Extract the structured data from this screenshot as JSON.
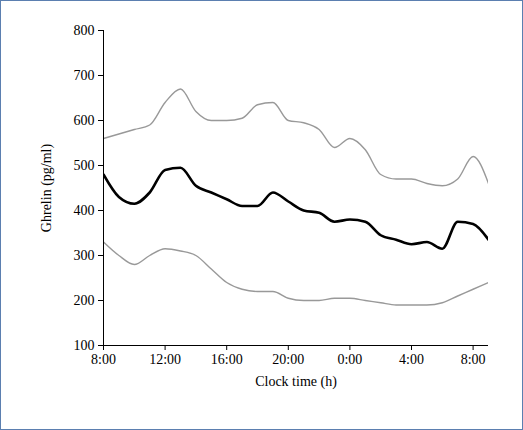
{
  "chart_data": {
    "type": "line",
    "xlabel": "Clock time (h)",
    "ylabel": "Ghrelin (pg/ml)",
    "x": [
      8,
      9,
      10,
      11,
      12,
      13,
      14,
      15,
      16,
      17,
      18,
      19,
      20,
      21,
      22,
      23,
      24,
      25,
      26,
      27,
      28,
      29,
      30,
      31,
      32,
      33
    ],
    "series": [
      {
        "color": "#000000",
        "values": [
          480,
          430,
          415,
          440,
          490,
          495,
          455,
          440,
          425,
          410,
          410,
          440,
          420,
          400,
          395,
          375,
          380,
          375,
          345,
          335,
          325,
          330,
          315,
          375,
          370,
          335
        ]
      },
      {
        "color": "#999999",
        "values": [
          560,
          570,
          580,
          590,
          640,
          670,
          620,
          600,
          600,
          605,
          635,
          640,
          600,
          595,
          580,
          540,
          560,
          535,
          480,
          470,
          470,
          460,
          455,
          470,
          520,
          460
        ]
      },
      {
        "color": "#999999",
        "values": [
          330,
          300,
          280,
          300,
          315,
          310,
          300,
          270,
          240,
          225,
          220,
          220,
          205,
          200,
          200,
          205,
          205,
          200,
          195,
          190,
          190,
          190,
          195,
          210,
          225,
          240
        ]
      }
    ],
    "xlim": [
      8,
      33
    ],
    "xticks": [
      {
        "value": 8,
        "label": "8:00"
      },
      {
        "value": 12,
        "label": "12:00"
      },
      {
        "value": 16,
        "label": "16:00"
      },
      {
        "value": 20,
        "label": "20:00"
      },
      {
        "value": 24,
        "label": "0:00"
      },
      {
        "value": 28,
        "label": "4:00"
      },
      {
        "value": 32,
        "label": "8:00"
      }
    ],
    "ylim": [
      100,
      800
    ],
    "yticks": [
      100,
      200,
      300,
      400,
      500,
      600,
      700,
      800
    ],
    "grid": false
  }
}
